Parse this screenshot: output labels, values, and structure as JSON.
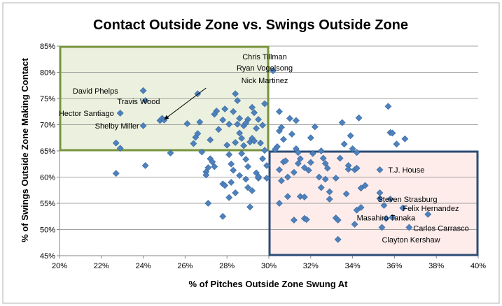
{
  "chart_data": {
    "type": "scatter",
    "title": "Contact Outside Zone vs. Swings Outside Zone",
    "xlabel": "% of Pitches Outside Zone Swung At",
    "ylabel": "% of Swings Outside Zone Making Contact",
    "xlim": [
      20,
      40
    ],
    "ylim": [
      45,
      85
    ],
    "xticks": [
      "20%",
      "22%",
      "24%",
      "26%",
      "28%",
      "30%",
      "32%",
      "34%",
      "36%",
      "38%",
      "40%"
    ],
    "yticks": [
      "45%",
      "50%",
      "55%",
      "60%",
      "65%",
      "70%",
      "75%",
      "80%",
      "85%"
    ],
    "grid": "horizontal",
    "legend": "none",
    "colors": {
      "marker": "#4f81bd",
      "marker_edge": "#3a6a9e",
      "green_box_fill": "#ebf1de",
      "green_box_border": "#77933c",
      "pink_box_fill": "#fdecea",
      "pink_box_border": "#2c4d75",
      "gridline": "#868686",
      "frame_border": "#b0b0b0"
    },
    "regions": [
      {
        "name": "high-contact-low-chase",
        "x": [
          20,
          30
        ],
        "y": [
          65,
          85
        ],
        "color": "green"
      },
      {
        "name": "low-contact-high-chase",
        "x": [
          30,
          40
        ],
        "y": [
          45,
          65
        ],
        "color": "pink"
      }
    ],
    "annotations": [
      {
        "text": "Chris Tillman",
        "x": 29.8,
        "y": 83.0,
        "align": "middle"
      },
      {
        "text": "Ryan Vogelsong",
        "x": 29.8,
        "y": 80.9,
        "align": "middle"
      },
      {
        "text": "Nick Martinez",
        "x": 29.8,
        "y": 78.5,
        "align": "middle"
      },
      {
        "text": "David Phelps",
        "x": 22.8,
        "y": 76.5,
        "align": "end"
      },
      {
        "text": "Travis Wood",
        "x": 24.8,
        "y": 74.5,
        "align": "end"
      },
      {
        "text": "Hector Santiago",
        "x": 22.6,
        "y": 72.2,
        "align": "end"
      },
      {
        "text": "Shelby Miller",
        "x": 23.8,
        "y": 69.8,
        "align": "end"
      },
      {
        "text": "T.J. House",
        "x": 35.7,
        "y": 61.4,
        "align": "start"
      },
      {
        "text": "Steven Strasburg",
        "x": 35.2,
        "y": 55.8,
        "align": "start"
      },
      {
        "text": "Felix Hernandez",
        "x": 36.4,
        "y": 54.1,
        "align": "start"
      },
      {
        "text": "Masahiro Tanaka",
        "x": 34.2,
        "y": 52.3,
        "align": "start"
      },
      {
        "text": "Carlos Carrasco",
        "x": 36.9,
        "y": 50.3,
        "align": "start"
      },
      {
        "text": "Clayton Kershaw",
        "x": 35.4,
        "y": 48.1,
        "align": "start"
      }
    ],
    "arrow": {
      "from": [
        27.0,
        77.0
      ],
      "to": [
        25.0,
        71.0
      ]
    },
    "points": [
      [
        24.0,
        76.5
      ],
      [
        24.1,
        74.6
      ],
      [
        24.8,
        70.8
      ],
      [
        24.9,
        71.2
      ],
      [
        25.0,
        70.9
      ],
      [
        22.9,
        72.2
      ],
      [
        24.0,
        69.8
      ],
      [
        22.7,
        66.5
      ],
      [
        22.9,
        65.5
      ],
      [
        22.7,
        60.7
      ],
      [
        24.1,
        62.2
      ],
      [
        25.3,
        64.6
      ],
      [
        26.6,
        75.9
      ],
      [
        26.5,
        67.6
      ],
      [
        26.6,
        68.3
      ],
      [
        26.7,
        70.5
      ],
      [
        26.1,
        70.2
      ],
      [
        26.4,
        66.4
      ],
      [
        26.8,
        64.8
      ],
      [
        27.0,
        61.0
      ],
      [
        27.1,
        61.8
      ],
      [
        27.2,
        63.5
      ],
      [
        27.3,
        62.9
      ],
      [
        27.4,
        62.0
      ],
      [
        27.5,
        72.6
      ],
      [
        27.4,
        72.0
      ],
      [
        27.6,
        69.1
      ],
      [
        27.2,
        67.1
      ],
      [
        27.0,
        60.4
      ],
      [
        27.1,
        55.0
      ],
      [
        27.8,
        52.5
      ],
      [
        27.8,
        58.7
      ],
      [
        27.9,
        58.4
      ],
      [
        27.8,
        70.9
      ],
      [
        27.9,
        73.0
      ],
      [
        28.0,
        66.1
      ],
      [
        28.1,
        64.3
      ],
      [
        28.2,
        62.5
      ],
      [
        28.2,
        59.0
      ],
      [
        28.3,
        61.3
      ],
      [
        28.4,
        75.9
      ],
      [
        28.5,
        74.6
      ],
      [
        28.3,
        72.5
      ],
      [
        28.6,
        71.2
      ],
      [
        28.5,
        70.1
      ],
      [
        28.6,
        68.4
      ],
      [
        28.7,
        67.4
      ],
      [
        28.4,
        66.6
      ],
      [
        28.8,
        66.0
      ],
      [
        28.7,
        64.5
      ],
      [
        28.9,
        63.4
      ],
      [
        29.0,
        62.0
      ],
      [
        28.6,
        60.3
      ],
      [
        28.9,
        59.6
      ],
      [
        29.0,
        58.0
      ],
      [
        29.2,
        57.4
      ],
      [
        28.4,
        57.0
      ],
      [
        28.1,
        56.1
      ],
      [
        29.1,
        54.3
      ],
      [
        29.4,
        60.8
      ],
      [
        29.5,
        59.8
      ],
      [
        29.0,
        71.0
      ],
      [
        29.2,
        73.3
      ],
      [
        29.3,
        72.3
      ],
      [
        29.5,
        71.0
      ],
      [
        29.4,
        69.3
      ],
      [
        29.2,
        67.4
      ],
      [
        29.6,
        66.5
      ],
      [
        29.8,
        65.1
      ],
      [
        29.8,
        74.0
      ],
      [
        29.7,
        69.9
      ],
      [
        29.9,
        62.2
      ],
      [
        29.5,
        60.1
      ],
      [
        29.1,
        66.7
      ],
      [
        29.3,
        66.9
      ],
      [
        28.8,
        69.8
      ],
      [
        28.1,
        70.1
      ],
      [
        28.9,
        70.3
      ],
      [
        29.7,
        63.5
      ],
      [
        29.9,
        59.8
      ],
      [
        30.2,
        80.3
      ],
      [
        30.5,
        72.5
      ],
      [
        30.6,
        69.5
      ],
      [
        30.5,
        68.8
      ],
      [
        30.7,
        67.2
      ],
      [
        30.4,
        65.8
      ],
      [
        30.3,
        65.3
      ],
      [
        30.7,
        62.9
      ],
      [
        30.8,
        63.1
      ],
      [
        30.5,
        61.4
      ],
      [
        30.9,
        60.0
      ],
      [
        30.6,
        59.3
      ],
      [
        30.9,
        56.3
      ],
      [
        30.5,
        55.0
      ],
      [
        31.0,
        71.2
      ],
      [
        31.3,
        70.8
      ],
      [
        31.1,
        68.2
      ],
      [
        31.3,
        65.4
      ],
      [
        31.4,
        64.7
      ],
      [
        31.5,
        63.5
      ],
      [
        31.4,
        62.6
      ],
      [
        31.7,
        61.8
      ],
      [
        31.2,
        60.9
      ],
      [
        31.2,
        51.8
      ],
      [
        31.7,
        52.1
      ],
      [
        31.8,
        51.9
      ],
      [
        31.5,
        56.3
      ],
      [
        31.7,
        56.2
      ],
      [
        31.9,
        61.3
      ],
      [
        32.0,
        62.8
      ],
      [
        32.1,
        64.5
      ],
      [
        32.2,
        69.6
      ],
      [
        32.0,
        67.5
      ],
      [
        32.5,
        65.0
      ],
      [
        32.6,
        63.6
      ],
      [
        32.7,
        62.6
      ],
      [
        32.8,
        61.7
      ],
      [
        32.4,
        60.0
      ],
      [
        32.7,
        59.6
      ],
      [
        32.5,
        58.0
      ],
      [
        32.9,
        57.2
      ],
      [
        32.9,
        55.8
      ],
      [
        33.2,
        59.8
      ],
      [
        33.2,
        52.2
      ],
      [
        33.3,
        51.8
      ],
      [
        33.3,
        48.1
      ],
      [
        33.5,
        70.4
      ],
      [
        33.6,
        66.3
      ],
      [
        33.9,
        67.9
      ],
      [
        33.4,
        63.6
      ],
      [
        33.8,
        62.2
      ],
      [
        33.8,
        61.5
      ],
      [
        33.7,
        56.8
      ],
      [
        34.1,
        51.0
      ],
      [
        34.1,
        61.4
      ],
      [
        34.2,
        61.7
      ],
      [
        34.3,
        71.3
      ],
      [
        34.0,
        65.4
      ],
      [
        34.2,
        64.7
      ],
      [
        34.4,
        57.9
      ],
      [
        34.6,
        58.4
      ],
      [
        34.2,
        53.7
      ],
      [
        34.4,
        54.2
      ],
      [
        35.3,
        61.4
      ],
      [
        35.3,
        57.0
      ],
      [
        35.7,
        73.5
      ],
      [
        35.8,
        68.5
      ],
      [
        35.9,
        68.4
      ],
      [
        35.4,
        50.4
      ],
      [
        35.8,
        55.8
      ],
      [
        36.4,
        54.1
      ],
      [
        36.1,
        66.3
      ],
      [
        36.5,
        67.3
      ],
      [
        37.6,
        52.9
      ],
      [
        36.7,
        50.4
      ],
      [
        35.6,
        52.1
      ],
      [
        35.5,
        54.6
      ],
      [
        35.3,
        55.9
      ],
      [
        35.9,
        52.3
      ]
    ]
  }
}
